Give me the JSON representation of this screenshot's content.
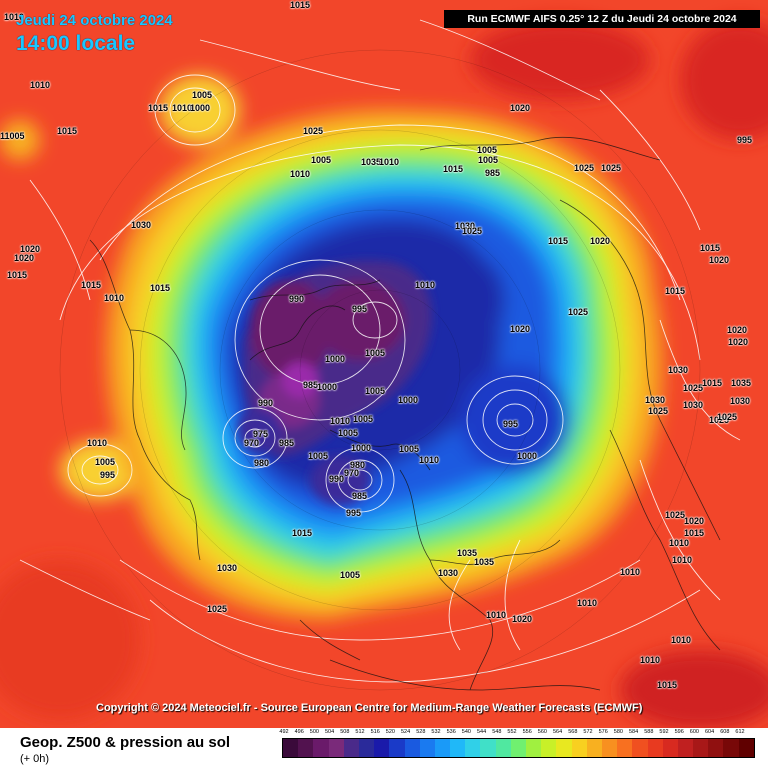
{
  "header": {
    "date": "Jeudi 24 octobre 2024",
    "time": "14:00 locale",
    "run": "Run ECMWF AIFS 0.25° 12 Z du Jeudi 24 octobre 2024"
  },
  "copyright": "Copyright © 2024 Meteociel.fr - Source European Centre for Medium-Range Weather Forecasts (ECMWF)",
  "footer": {
    "title": "Geop. Z500 & pression au sol",
    "subtitle": "(+ 0h)"
  },
  "scale": {
    "labels": [
      "492",
      "496",
      "500",
      "504",
      "508",
      "512",
      "516",
      "520",
      "524",
      "528",
      "532",
      "536",
      "540",
      "544",
      "548",
      "552",
      "556",
      "560",
      "564",
      "568",
      "572",
      "576",
      "580",
      "584",
      "588",
      "592",
      "596",
      "600",
      "604",
      "608",
      "612"
    ],
    "colors": [
      "#3a0a3a",
      "#52124f",
      "#6a1a6a",
      "#7a2a7a",
      "#4a2a8a",
      "#2a2a9a",
      "#1a1aaa",
      "#1a3ac8",
      "#1a5ae0",
      "#1a7af0",
      "#1a9af8",
      "#20b8f8",
      "#30d0e8",
      "#40e0c8",
      "#50e8a0",
      "#70f070",
      "#a0f040",
      "#c8f028",
      "#e8e820",
      "#f8d020",
      "#f8b020",
      "#f89020",
      "#f87020",
      "#f05020",
      "#e83a20",
      "#d82a20",
      "#c02020",
      "#a81818",
      "#901010",
      "#780808",
      "#600000"
    ]
  },
  "colors": {
    "ocean_background": "#f2462a",
    "header_text": "#19c7ff",
    "isobar": "#ffffff",
    "coastline": "#111111"
  },
  "pressure_labels": [
    {
      "t": "1010"
    },
    {
      "t": "1015"
    },
    {
      "t": "1010"
    },
    {
      "t": "1005"
    },
    {
      "t": "1015"
    },
    {
      "t": "1010"
    },
    {
      "t": "1000"
    },
    {
      "t": "11005"
    },
    {
      "t": "1015"
    },
    {
      "t": "1025"
    },
    {
      "t": "1005"
    },
    {
      "t": "1010"
    },
    {
      "t": "1030"
    },
    {
      "t": "1035"
    },
    {
      "t": "1005"
    },
    {
      "t": "1015"
    },
    {
      "t": "985"
    },
    {
      "t": "1020"
    },
    {
      "t": "1010"
    },
    {
      "t": "1025"
    },
    {
      "t": "1025"
    },
    {
      "t": "1005"
    },
    {
      "t": "995"
    },
    {
      "t": "1030"
    },
    {
      "t": "1025"
    },
    {
      "t": "1020"
    },
    {
      "t": "1020"
    },
    {
      "t": "1015"
    },
    {
      "t": "1015"
    },
    {
      "t": "1015"
    },
    {
      "t": "1010"
    },
    {
      "t": "1010"
    },
    {
      "t": "1015"
    },
    {
      "t": "1020"
    },
    {
      "t": "1015"
    },
    {
      "t": "990"
    },
    {
      "t": "995"
    },
    {
      "t": "1020"
    },
    {
      "t": "1025"
    },
    {
      "t": "1015"
    },
    {
      "t": "1000"
    },
    {
      "t": "1005"
    },
    {
      "t": "1020"
    },
    {
      "t": "1020"
    },
    {
      "t": "985"
    },
    {
      "t": "1000"
    },
    {
      "t": "1005"
    },
    {
      "t": "1020"
    },
    {
      "t": "1030"
    },
    {
      "t": "1025"
    },
    {
      "t": "1015"
    },
    {
      "t": "990"
    },
    {
      "t": "1000"
    },
    {
      "t": "1010"
    },
    {
      "t": "1005"
    },
    {
      "t": "995"
    },
    {
      "t": "1025"
    },
    {
      "t": "1030"
    },
    {
      "t": "975"
    },
    {
      "t": "970"
    },
    {
      "t": "985"
    },
    {
      "t": "1005"
    },
    {
      "t": "1000"
    },
    {
      "t": "1005"
    },
    {
      "t": "1000"
    },
    {
      "t": "1025"
    },
    {
      "t": "1010"
    },
    {
      "t": "1005"
    },
    {
      "t": "995"
    },
    {
      "t": "980"
    },
    {
      "t": "1005"
    },
    {
      "t": "980"
    },
    {
      "t": "970"
    },
    {
      "t": "990"
    },
    {
      "t": "985"
    },
    {
      "t": "995"
    },
    {
      "t": "1010"
    },
    {
      "t": "1015"
    },
    {
      "t": "1035"
    },
    {
      "t": "1035"
    },
    {
      "t": "1030"
    },
    {
      "t": "1005"
    },
    {
      "t": "1030"
    },
    {
      "t": "1025"
    },
    {
      "t": "1035"
    },
    {
      "t": "1030"
    },
    {
      "t": "1025"
    },
    {
      "t": "1030"
    },
    {
      "t": "1025"
    },
    {
      "t": "1020"
    },
    {
      "t": "1015"
    },
    {
      "t": "1010"
    },
    {
      "t": "1010"
    },
    {
      "t": "1010"
    },
    {
      "t": "1010"
    },
    {
      "t": "1010"
    },
    {
      "t": "1020"
    },
    {
      "t": "1010"
    },
    {
      "t": "1010"
    },
    {
      "t": "1015"
    }
  ]
}
